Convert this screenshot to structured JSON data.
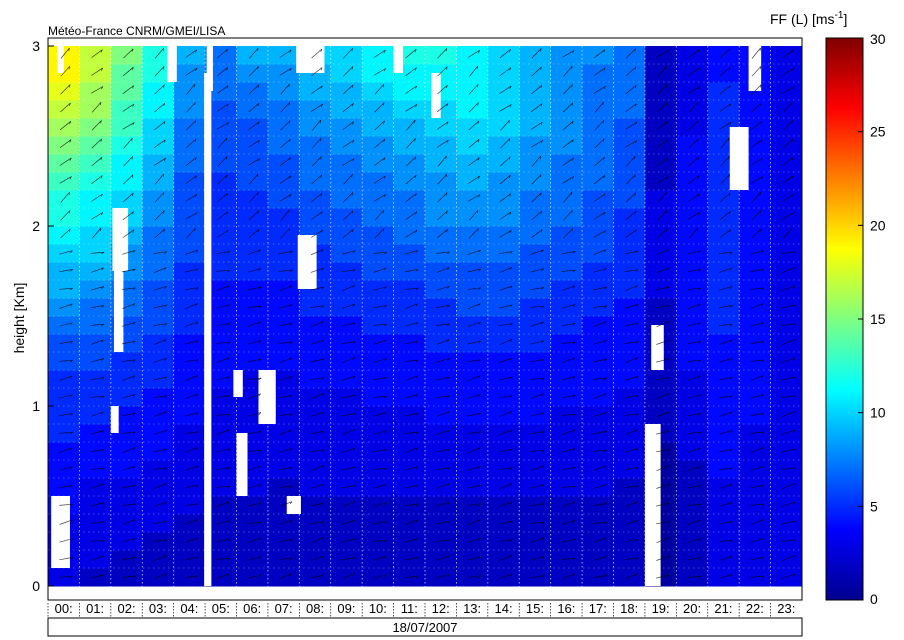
{
  "header": {
    "institution": "Météo-France CNRM/GMEI/LISA"
  },
  "chart_data": {
    "type": "heatmap",
    "title": "",
    "xlabel": "18/07/2007",
    "ylabel": "height [Km]",
    "x_tick_labels": [
      "00:",
      "01:",
      "02:",
      "03:",
      "04:",
      "05:",
      "06:",
      "07:",
      "08:",
      "09:",
      "10:",
      "11:",
      "12:",
      "13:",
      "14:",
      "15:",
      "16:",
      "17:",
      "18:",
      "19:",
      "20:",
      "21:",
      "22:",
      "23:"
    ],
    "y_tick_labels": [
      "0",
      "1",
      "2",
      "3"
    ],
    "ylim": [
      0,
      3
    ],
    "colorbar": {
      "label_main": "FF (L) [ms",
      "label_exp": "-1",
      "label_close": "]",
      "ticks": [
        "0",
        "5",
        "10",
        "15",
        "20",
        "25",
        "30"
      ],
      "range": [
        0,
        30
      ],
      "colormap": "jet"
    },
    "grid": true,
    "overlay": "wind arrows",
    "rows_height_km": [
      0.05,
      0.15,
      0.25,
      0.35,
      0.45,
      0.55,
      0.65,
      0.75,
      0.85,
      0.95,
      1.05,
      1.15,
      1.25,
      1.35,
      1.45,
      1.55,
      1.65,
      1.75,
      1.85,
      1.95,
      2.05,
      2.15,
      2.25,
      2.35,
      2.45,
      2.55,
      2.65,
      2.75,
      2.85,
      2.95
    ],
    "hour_values_ms": [
      [
        3,
        3,
        3,
        3,
        4,
        4,
        4,
        4,
        5,
        5,
        5,
        5,
        6,
        6,
        7,
        8,
        9,
        9,
        10,
        11,
        12,
        12,
        13,
        14,
        15,
        16,
        17,
        18,
        19,
        19
      ],
      [
        2,
        3,
        3,
        3,
        3,
        3,
        4,
        4,
        4,
        5,
        5,
        5,
        6,
        6,
        7,
        7,
        8,
        9,
        10,
        10,
        11,
        11,
        12,
        13,
        14,
        15,
        16,
        16,
        17,
        17
      ],
      [
        2,
        2,
        3,
        3,
        3,
        3,
        4,
        4,
        4,
        4,
        5,
        5,
        5,
        6,
        6,
        7,
        7,
        8,
        8,
        9,
        10,
        10,
        11,
        11,
        12,
        13,
        13,
        14,
        14,
        15
      ],
      [
        2,
        2,
        2,
        3,
        3,
        3,
        3,
        4,
        4,
        4,
        4,
        5,
        5,
        5,
        6,
        6,
        6,
        7,
        7,
        7,
        8,
        8,
        9,
        9,
        10,
        10,
        11,
        11,
        12,
        12
      ],
      [
        2,
        2,
        2,
        2,
        3,
        3,
        3,
        3,
        3,
        4,
        4,
        4,
        4,
        4,
        5,
        5,
        5,
        5,
        6,
        6,
        6,
        6,
        6,
        7,
        7,
        7,
        8,
        8,
        8,
        9
      ],
      [
        2,
        2,
        2,
        2,
        2,
        3,
        3,
        3,
        3,
        3,
        3,
        4,
        4,
        4,
        4,
        4,
        4,
        5,
        5,
        5,
        5,
        5,
        5,
        6,
        6,
        6,
        6,
        7,
        7,
        7
      ],
      [
        2,
        2,
        2,
        2,
        2,
        3,
        3,
        3,
        3,
        3,
        3,
        3,
        4,
        4,
        4,
        4,
        4,
        5,
        5,
        5,
        5,
        5,
        6,
        6,
        6,
        6,
        7,
        7,
        8,
        9
      ],
      [
        2,
        2,
        2,
        2,
        2,
        2,
        3,
        3,
        3,
        3,
        3,
        3,
        4,
        4,
        4,
        4,
        4,
        5,
        5,
        5,
        5,
        6,
        6,
        6,
        7,
        7,
        7,
        8,
        8,
        9
      ],
      [
        2,
        2,
        2,
        2,
        2,
        3,
        3,
        3,
        3,
        3,
        3,
        4,
        4,
        4,
        4,
        5,
        5,
        5,
        5,
        6,
        6,
        6,
        7,
        7,
        7,
        8,
        8,
        9,
        9,
        10
      ],
      [
        2,
        2,
        2,
        2,
        2,
        3,
        3,
        3,
        3,
        3,
        3,
        4,
        4,
        4,
        4,
        5,
        5,
        5,
        6,
        6,
        6,
        7,
        7,
        7,
        8,
        8,
        9,
        9,
        10,
        10
      ],
      [
        2,
        2,
        2,
        2,
        2,
        3,
        3,
        3,
        3,
        3,
        4,
        4,
        4,
        4,
        5,
        5,
        5,
        6,
        6,
        6,
        7,
        7,
        7,
        8,
        8,
        9,
        9,
        10,
        11,
        11
      ],
      [
        2,
        2,
        2,
        2,
        2,
        3,
        3,
        3,
        3,
        3,
        4,
        4,
        4,
        4,
        5,
        5,
        5,
        6,
        6,
        7,
        7,
        7,
        8,
        8,
        9,
        9,
        10,
        11,
        11,
        12
      ],
      [
        2,
        2,
        2,
        2,
        2,
        3,
        3,
        3,
        3,
        4,
        4,
        4,
        4,
        5,
        5,
        5,
        6,
        6,
        7,
        7,
        8,
        8,
        8,
        9,
        9,
        10,
        10,
        11,
        11,
        12
      ],
      [
        2,
        2,
        2,
        2,
        2,
        3,
        3,
        3,
        3,
        4,
        4,
        4,
        4,
        5,
        5,
        6,
        6,
        6,
        7,
        7,
        8,
        8,
        9,
        9,
        10,
        10,
        11,
        11,
        11,
        11
      ],
      [
        2,
        2,
        2,
        2,
        2,
        3,
        3,
        3,
        3,
        4,
        4,
        4,
        4,
        5,
        5,
        6,
        6,
        6,
        7,
        7,
        8,
        8,
        8,
        9,
        9,
        10,
        10,
        10,
        10,
        10
      ],
      [
        2,
        2,
        2,
        2,
        2,
        3,
        3,
        3,
        3,
        4,
        4,
        4,
        4,
        5,
        5,
        5,
        6,
        6,
        6,
        7,
        7,
        7,
        8,
        8,
        8,
        9,
        9,
        9,
        9,
        9
      ],
      [
        2,
        2,
        2,
        2,
        2,
        3,
        3,
        3,
        3,
        3,
        4,
        4,
        4,
        4,
        5,
        5,
        5,
        6,
        6,
        6,
        7,
        7,
        7,
        7,
        8,
        8,
        8,
        8,
        8,
        8
      ],
      [
        2,
        2,
        2,
        2,
        2,
        3,
        3,
        3,
        3,
        3,
        4,
        4,
        4,
        4,
        4,
        5,
        5,
        5,
        6,
        6,
        6,
        6,
        7,
        7,
        7,
        7,
        7,
        7,
        7,
        8
      ],
      [
        2,
        2,
        2,
        2,
        2,
        2,
        3,
        3,
        3,
        3,
        3,
        4,
        4,
        4,
        4,
        4,
        5,
        5,
        5,
        5,
        5,
        6,
        6,
        6,
        6,
        6,
        7,
        7,
        7,
        7
      ],
      [
        1,
        1,
        1,
        1,
        1,
        1,
        1,
        1,
        2,
        2,
        2,
        2,
        2,
        2,
        2,
        2,
        3,
        3,
        3,
        3,
        3,
        3,
        2,
        2,
        2,
        2,
        2,
        2,
        2,
        2
      ],
      [
        2,
        2,
        2,
        2,
        2,
        2,
        2,
        3,
        3,
        3,
        3,
        3,
        4,
        4,
        4,
        4,
        4,
        4,
        4,
        4,
        4,
        4,
        4,
        4,
        4,
        3,
        3,
        3,
        3,
        3
      ],
      [
        3,
        3,
        3,
        3,
        3,
        3,
        4,
        4,
        4,
        4,
        4,
        4,
        4,
        4,
        5,
        5,
        5,
        5,
        5,
        5,
        5,
        5,
        5,
        5,
        5,
        5,
        5,
        5,
        4,
        4
      ],
      [
        3,
        3,
        3,
        3,
        3,
        3,
        3,
        3,
        3,
        4,
        4,
        4,
        4,
        4,
        4,
        4,
        4,
        4,
        4,
        4,
        4,
        4,
        4,
        4,
        4,
        4,
        4,
        4,
        4,
        4
      ],
      [
        3,
        3,
        3,
        3,
        3,
        3,
        3,
        3,
        3,
        3,
        3,
        3,
        3,
        3,
        3,
        3,
        3,
        3,
        3,
        3,
        3,
        3,
        3,
        3,
        3,
        3,
        3,
        3,
        3,
        3
      ]
    ]
  }
}
